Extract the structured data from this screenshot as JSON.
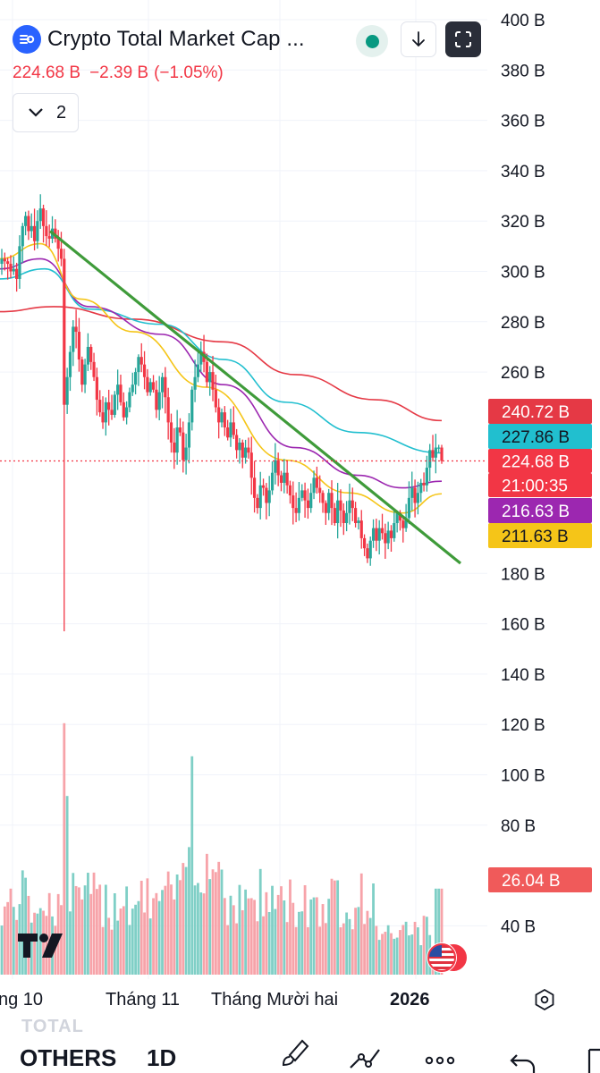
{
  "header": {
    "title": "Crypto Total Market Cap ...",
    "last_value": "224.68 B",
    "change": "−2.39 B",
    "change_pct": "(−1.05%)",
    "indicators_collapse_count": "2"
  },
  "bottom_toolbar": {
    "ghost_symbol": "TOTAL",
    "symbol": "OTHERS",
    "interval": "1D"
  },
  "icons": [
    "tradingview-logo-icon",
    "market-status-dot-icon",
    "download-arrow-icon",
    "fullscreen-icon",
    "chevron-down-icon",
    "us-flag-icon",
    "settings-hexagon-icon",
    "brush-icon",
    "drawing-trend-icon",
    "more-dots-icon",
    "undo-icon"
  ],
  "colors": {
    "up": "#26a69a",
    "down": "#f23645",
    "up_vol": "#7fcfc6",
    "down_vol": "#f7a3a9",
    "ma_red": "#e53945",
    "ma_cyan": "#21bfcf",
    "ma_purple": "#9c27b0",
    "ma_yellow": "#f5c518",
    "trendline": "#3f9b3a",
    "accent": "#2962ff"
  },
  "chart_data": {
    "type": "candlestick",
    "title": "Crypto Total Market Cap ...",
    "interval": "1D",
    "y_axis": {
      "unit": "B",
      "range": [
        20,
        400
      ],
      "ticks": [
        "400 B",
        "380 B",
        "360 B",
        "340 B",
        "320 B",
        "300 B",
        "280 B",
        "260 B",
        "180 B",
        "160 B",
        "140 B",
        "120 B",
        "100 B",
        "80 B",
        "40 B"
      ],
      "tick_values": [
        400,
        380,
        360,
        340,
        320,
        300,
        280,
        260,
        180,
        160,
        140,
        120,
        100,
        80,
        40
      ]
    },
    "x_axis": {
      "labels": [
        "ng 10",
        "Tháng 11",
        "Tháng Mười hai",
        "2026"
      ]
    },
    "price_labels": [
      {
        "name": "ma-red",
        "text": "240.72 B",
        "value": 240.72,
        "color": "#e53945"
      },
      {
        "name": "ma-cyan",
        "text": "227.86 B",
        "value": 227.86,
        "color": "#21bfcf"
      },
      {
        "name": "last-price",
        "text": "224.68 B",
        "value": 224.68,
        "color": "#f23645"
      },
      {
        "name": "countdown",
        "text": "21:00:35",
        "color": "#f23645"
      },
      {
        "name": "ma-purple",
        "text": "216.63 B",
        "value": 216.63,
        "color": "#9c27b0"
      },
      {
        "name": "ma-yellow",
        "text": "211.63 B",
        "value": 211.63,
        "color": "#f5c518"
      },
      {
        "name": "volume",
        "text": "26.04 B",
        "value": 26.04,
        "color": "#f05a5a"
      }
    ],
    "last_price": 224.68,
    "candle_closes": [
      305,
      304,
      303,
      300,
      301,
      297,
      310,
      318,
      322,
      316,
      318,
      312,
      320,
      325,
      318,
      314,
      313,
      317,
      313,
      309,
      305,
      247,
      258,
      268,
      278,
      276,
      265,
      255,
      263,
      270,
      264,
      258,
      249,
      244,
      240,
      248,
      245,
      243,
      251,
      255,
      248,
      242,
      246,
      252,
      255,
      260,
      266,
      263,
      258,
      252,
      256,
      253,
      245,
      252,
      258,
      250,
      240,
      232,
      228,
      238,
      236,
      225,
      230,
      240,
      253,
      258,
      263,
      268,
      264,
      256,
      260,
      253,
      246,
      240,
      244,
      238,
      234,
      240,
      235,
      229,
      232,
      226,
      230,
      228,
      218,
      210,
      206,
      215,
      214,
      208,
      213,
      220,
      225,
      219,
      216,
      220,
      215,
      211,
      206,
      204,
      210,
      213,
      209,
      206,
      212,
      218,
      214,
      212,
      208,
      204,
      212,
      206,
      200,
      209,
      205,
      200,
      204,
      209,
      206,
      200,
      201,
      194,
      190,
      186,
      193,
      198,
      193,
      198,
      196,
      192,
      197,
      194,
      200,
      204,
      201,
      198,
      202,
      210,
      214,
      208,
      212,
      216,
      215,
      222,
      229,
      226,
      230,
      230,
      224.68
    ],
    "moving_averages": [
      {
        "name": "ma-red",
        "last": 240.72
      },
      {
        "name": "ma-cyan",
        "last": 227.86
      },
      {
        "name": "ma-purple",
        "last": 216.63
      },
      {
        "name": "ma-yellow",
        "last": 211.63
      }
    ],
    "trendline": {
      "start": 316,
      "end": 184
    },
    "volume_last": 26.04,
    "grid": true
  }
}
